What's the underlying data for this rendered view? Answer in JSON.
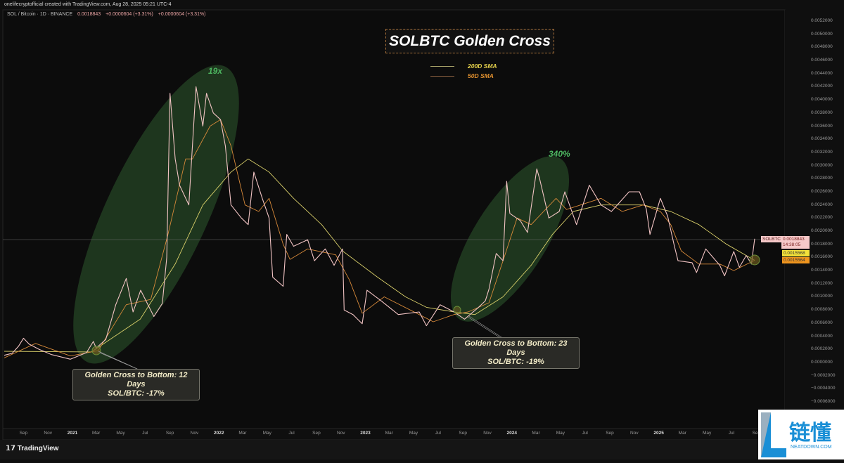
{
  "header": {
    "attribution": "onelifecryptofficial created with TradingView.com, Aug 28, 2025 05:21 UTC-4",
    "symbol": "SOL / Bitcoin · 1D · BINANCE",
    "last": "0.0018843",
    "change1": "+0.0000604 (+3.31%)",
    "change2": "+0.0000604 (+3.31%)"
  },
  "price_labels": {
    "symbol": "SOLBTC",
    "last": "0.0018843",
    "countdown": "14:38:05",
    "sma200": "0.0015568",
    "sma50": "0.0015564"
  },
  "colors": {
    "price": "#f2c4c4",
    "sma200": "#d9cf6a",
    "sma50": "#d88a3a",
    "highlight": "#2e5a2e",
    "gain_text": "#4db660"
  },
  "footer": {
    "logo": "TradingView"
  },
  "watermark": {
    "text": "链懂",
    "sub": "NEATDOWN.COM"
  },
  "chart_data": {
    "type": "line",
    "title": "SOLBTC Golden Cross",
    "ylim": [
      -0.0006,
      0.0052
    ],
    "grid": false,
    "legend": "top-center",
    "y_ticks": [
      "0.0052000",
      "0.0050000",
      "0.0048000",
      "0.0046000",
      "0.0044000",
      "0.0042000",
      "0.0040000",
      "0.0038000",
      "0.0036000",
      "0.0034000",
      "0.0032000",
      "0.0030000",
      "0.0028000",
      "0.0026000",
      "0.0024000",
      "0.0022000",
      "0.0020000",
      "0.0018000",
      "0.0016000",
      "0.0014000",
      "0.0012000",
      "0.0010000",
      "0.0008000",
      "0.0006000",
      "0.0004000",
      "0.0002000",
      "0.0000000",
      "−0.0002000",
      "−0.0004000",
      "−0.0006000"
    ],
    "x_ticks": [
      {
        "label": "Sep",
        "date": "2020-09-01"
      },
      {
        "label": "Nov",
        "date": "2020-11-01"
      },
      {
        "label": "2021",
        "date": "2021-01-01",
        "year": true
      },
      {
        "label": "Mar",
        "date": "2021-03-01"
      },
      {
        "label": "May",
        "date": "2021-05-01"
      },
      {
        "label": "Jul",
        "date": "2021-07-01"
      },
      {
        "label": "Sep",
        "date": "2021-09-01"
      },
      {
        "label": "Nov",
        "date": "2021-11-01"
      },
      {
        "label": "2022",
        "date": "2022-01-01",
        "year": true
      },
      {
        "label": "Mar",
        "date": "2022-03-01"
      },
      {
        "label": "May",
        "date": "2022-05-01"
      },
      {
        "label": "Jul",
        "date": "2022-07-01"
      },
      {
        "label": "Sep",
        "date": "2022-09-01"
      },
      {
        "label": "Nov",
        "date": "2022-11-01"
      },
      {
        "label": "2023",
        "date": "2023-01-01",
        "year": true
      },
      {
        "label": "Mar",
        "date": "2023-03-01"
      },
      {
        "label": "May",
        "date": "2023-05-01"
      },
      {
        "label": "Jul",
        "date": "2023-07-01"
      },
      {
        "label": "Sep",
        "date": "2023-09-01"
      },
      {
        "label": "Nov",
        "date": "2023-11-01"
      },
      {
        "label": "2024",
        "date": "2024-01-01",
        "year": true
      },
      {
        "label": "Mar",
        "date": "2024-03-01"
      },
      {
        "label": "May",
        "date": "2024-05-01"
      },
      {
        "label": "Jul",
        "date": "2024-07-01"
      },
      {
        "label": "Sep",
        "date": "2024-09-01"
      },
      {
        "label": "Nov",
        "date": "2024-11-01"
      },
      {
        "label": "2025",
        "date": "2025-01-01",
        "year": true
      },
      {
        "label": "Mar",
        "date": "2025-03-01"
      },
      {
        "label": "May",
        "date": "2025-05-01"
      },
      {
        "label": "Jul",
        "date": "2025-07-01"
      },
      {
        "label": "Sep",
        "date": "2025-09-01"
      }
    ],
    "series": [
      {
        "name": "SOLBTC",
        "points": [
          [
            "2020-07-15",
            0.00011
          ],
          [
            "2020-08-04",
            0.00014
          ],
          [
            "2020-08-20",
            0.00025
          ],
          [
            "2020-09-01",
            0.00037
          ],
          [
            "2020-09-15",
            0.00028
          ],
          [
            "2020-10-10",
            0.0002
          ],
          [
            "2020-11-10",
            0.00012
          ],
          [
            "2020-12-27",
            5e-05
          ],
          [
            "2021-02-05",
            0.00015
          ],
          [
            "2021-02-22",
            0.00032
          ],
          [
            "2021-03-01",
            0.00022
          ],
          [
            "2021-03-25",
            0.00035
          ],
          [
            "2021-04-19",
            0.00088
          ],
          [
            "2021-05-15",
            0.00128
          ],
          [
            "2021-06-01",
            0.00077
          ],
          [
            "2021-06-20",
            0.0011
          ],
          [
            "2021-07-23",
            0.0007
          ],
          [
            "2021-08-13",
            0.0009
          ],
          [
            "2021-08-24",
            0.0016
          ],
          [
            "2021-09-01",
            0.0041
          ],
          [
            "2021-09-14",
            0.0031
          ],
          [
            "2021-09-25",
            0.0027
          ],
          [
            "2021-10-18",
            0.0024
          ],
          [
            "2021-11-05",
            0.0042
          ],
          [
            "2021-11-22",
            0.0036
          ],
          [
            "2021-12-01",
            0.0041
          ],
          [
            "2021-12-18",
            0.0038
          ],
          [
            "2022-01-05",
            0.0037
          ],
          [
            "2022-01-17",
            0.0033
          ],
          [
            "2022-01-31",
            0.0024
          ],
          [
            "2022-02-26",
            0.0022
          ],
          [
            "2022-03-15",
            0.0021
          ],
          [
            "2022-03-29",
            0.0029
          ],
          [
            "2022-04-19",
            0.0025
          ],
          [
            "2022-05-06",
            0.0022
          ],
          [
            "2022-05-15",
            0.0013
          ],
          [
            "2022-06-10",
            0.00116
          ],
          [
            "2022-06-19",
            0.00195
          ],
          [
            "2022-07-06",
            0.00177
          ],
          [
            "2022-08-10",
            0.00187
          ],
          [
            "2022-08-27",
            0.00155
          ],
          [
            "2022-09-23",
            0.00173
          ],
          [
            "2022-10-15",
            0.00148
          ],
          [
            "2022-11-05",
            0.00173
          ],
          [
            "2022-11-09",
            0.0008
          ],
          [
            "2022-12-01",
            0.00073
          ],
          [
            "2022-12-24",
            0.00059
          ],
          [
            "2023-01-05",
            0.0011
          ],
          [
            "2023-02-09",
            0.00094
          ],
          [
            "2023-03-24",
            0.00073
          ],
          [
            "2023-05-15",
            0.00077
          ],
          [
            "2023-06-02",
            0.00056
          ],
          [
            "2023-07-06",
            0.00088
          ],
          [
            "2023-08-10",
            0.00077
          ],
          [
            "2023-09-05",
            0.00066
          ],
          [
            "2023-10-10",
            0.00084
          ],
          [
            "2023-10-27",
            0.00094
          ],
          [
            "2023-11-05",
            0.00112
          ],
          [
            "2023-11-23",
            0.00166
          ],
          [
            "2023-12-10",
            0.00155
          ],
          [
            "2023-12-19",
            0.00276
          ],
          [
            "2023-12-27",
            0.00227
          ],
          [
            "2024-01-22",
            0.00216
          ],
          [
            "2024-02-09",
            0.00198
          ],
          [
            "2024-03-03",
            0.00295
          ],
          [
            "2024-03-10",
            0.0028
          ],
          [
            "2024-04-02",
            0.0022
          ],
          [
            "2024-04-28",
            0.0023
          ],
          [
            "2024-05-12",
            0.0026
          ],
          [
            "2024-06-10",
            0.0021
          ],
          [
            "2024-07-12",
            0.0027
          ],
          [
            "2024-08-10",
            0.0024
          ],
          [
            "2024-09-05",
            0.0023
          ],
          [
            "2024-10-19",
            0.0026
          ],
          [
            "2024-11-14",
            0.0026
          ],
          [
            "2024-12-01",
            0.00234
          ],
          [
            "2024-12-10",
            0.00195
          ],
          [
            "2025-01-05",
            0.0025
          ],
          [
            "2025-01-23",
            0.00223
          ],
          [
            "2025-02-09",
            0.00177
          ],
          [
            "2025-02-18",
            0.00155
          ],
          [
            "2025-03-25",
            0.00152
          ],
          [
            "2025-04-05",
            0.00137
          ],
          [
            "2025-04-28",
            0.00173
          ],
          [
            "2025-06-02",
            0.00148
          ],
          [
            "2025-06-14",
            0.00132
          ],
          [
            "2025-07-07",
            0.00169
          ],
          [
            "2025-07-21",
            0.00145
          ],
          [
            "2025-08-07",
            0.00163
          ],
          [
            "2025-08-20",
            0.0015
          ],
          [
            "2025-08-28",
            0.0018843
          ]
        ]
      },
      {
        "name": "200D SMA",
        "points": [
          [
            "2020-07-15",
            0.00017
          ],
          [
            "2021-02-17",
            0.00016
          ],
          [
            "2021-06-19",
            0.00066
          ],
          [
            "2021-09-14",
            0.0015
          ],
          [
            "2021-11-22",
            0.0024
          ],
          [
            "2022-01-31",
            0.0029
          ],
          [
            "2022-03-15",
            0.0031
          ],
          [
            "2022-05-06",
            0.0029
          ],
          [
            "2022-07-06",
            0.0025
          ],
          [
            "2022-09-14",
            0.0021
          ],
          [
            "2022-11-05",
            0.0017
          ],
          [
            "2023-01-31",
            0.0013
          ],
          [
            "2023-04-11",
            0.001
          ],
          [
            "2023-06-02",
            0.00084
          ],
          [
            "2023-08-10",
            0.00077
          ],
          [
            "2023-10-01",
            0.00073
          ],
          [
            "2023-12-10",
            0.001
          ],
          [
            "2024-02-18",
            0.00148
          ],
          [
            "2024-04-11",
            0.00195
          ],
          [
            "2024-06-02",
            0.0023
          ],
          [
            "2024-08-10",
            0.0024
          ],
          [
            "2024-09-14",
            0.0024
          ],
          [
            "2024-11-23",
            0.0024
          ],
          [
            "2025-01-31",
            0.0023
          ],
          [
            "2025-04-11",
            0.0021
          ],
          [
            "2025-06-19",
            0.0018
          ],
          [
            "2025-08-28",
            0.0015568
          ]
        ]
      },
      {
        "name": "50D SMA",
        "points": [
          [
            "2020-07-15",
            7e-05
          ],
          [
            "2020-10-01",
            0.00029
          ],
          [
            "2020-12-27",
            0.0001
          ],
          [
            "2021-03-06",
            0.00018
          ],
          [
            "2021-05-15",
            0.00088
          ],
          [
            "2021-07-15",
            0.00096
          ],
          [
            "2021-08-27",
            0.00195
          ],
          [
            "2021-10-10",
            0.0031
          ],
          [
            "2021-10-27",
            0.0031
          ],
          [
            "2021-12-10",
            0.0036
          ],
          [
            "2022-01-05",
            0.0037
          ],
          [
            "2022-01-31",
            0.0033
          ],
          [
            "2022-03-07",
            0.0024
          ],
          [
            "2022-04-10",
            0.0023
          ],
          [
            "2022-05-06",
            0.0025
          ],
          [
            "2022-06-10",
            0.0018
          ],
          [
            "2022-06-27",
            0.00157
          ],
          [
            "2022-08-10",
            0.00173
          ],
          [
            "2022-10-19",
            0.00164
          ],
          [
            "2022-11-22",
            0.00126
          ],
          [
            "2022-12-24",
            0.00075
          ],
          [
            "2023-02-17",
            0.001
          ],
          [
            "2023-05-15",
            0.00073
          ],
          [
            "2023-06-19",
            0.00062
          ],
          [
            "2023-08-10",
            0.00073
          ],
          [
            "2023-09-14",
            0.00077
          ],
          [
            "2023-11-05",
            0.00091
          ],
          [
            "2023-12-10",
            0.00155
          ],
          [
            "2024-01-14",
            0.0022
          ],
          [
            "2024-02-18",
            0.0021
          ],
          [
            "2024-04-20",
            0.0025
          ],
          [
            "2024-05-16",
            0.00233
          ],
          [
            "2024-08-10",
            0.0025
          ],
          [
            "2024-10-02",
            0.0023
          ],
          [
            "2024-11-23",
            0.0024
          ],
          [
            "2025-01-05",
            0.0023
          ],
          [
            "2025-01-31",
            0.0021
          ],
          [
            "2025-02-26",
            0.0017
          ],
          [
            "2025-04-11",
            0.0015
          ],
          [
            "2025-06-02",
            0.0015
          ],
          [
            "2025-07-07",
            0.0014
          ],
          [
            "2025-08-28",
            0.0015564
          ]
        ]
      }
    ],
    "legend_entries": [
      "200D SMA",
      "50D SMA"
    ],
    "annotations": {
      "gain1": "19x",
      "gain2": "340%",
      "callout1_line1": "Golden Cross to Bottom: 12 Days",
      "callout1_line2": "SOL/BTC: -17%",
      "callout2_line1": "Golden Cross to Bottom: 23 Days",
      "callout2_line2": "SOL/BTC: -19%"
    }
  }
}
